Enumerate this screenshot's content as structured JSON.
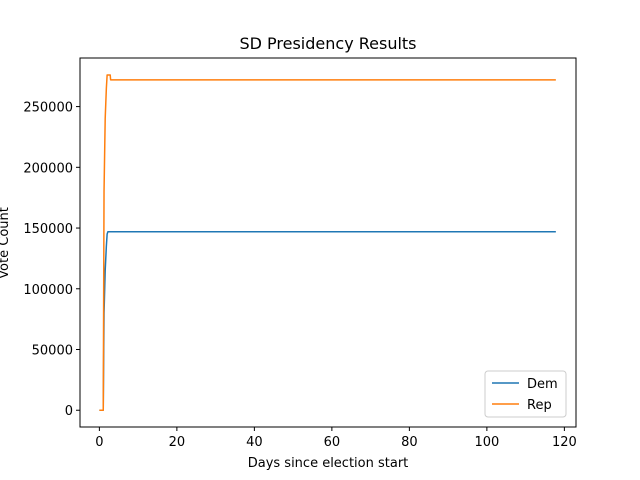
{
  "chart_data": {
    "type": "line",
    "title": "SD Presidency Results",
    "xlabel": "Days since election start",
    "ylabel": "Vote Count",
    "xlim": [
      -5,
      123
    ],
    "ylim": [
      -13800,
      290000
    ],
    "xticks": [
      0,
      20,
      40,
      60,
      80,
      100,
      120
    ],
    "yticks": [
      0,
      50000,
      100000,
      150000,
      200000,
      250000
    ],
    "xtick_labels": [
      "0",
      "20",
      "40",
      "60",
      "80",
      "100",
      "120"
    ],
    "ytick_labels": [
      "0",
      "50000",
      "100000",
      "150000",
      "200000",
      "250000"
    ],
    "grid": false,
    "legend_position": "lower right",
    "series": [
      {
        "name": "Dem",
        "color": "#1f77b4",
        "x": [
          0.0,
          1.0,
          1.2,
          1.5,
          1.8,
          2.0,
          2.2,
          3.0,
          20,
          60,
          100,
          117.8
        ],
        "y": [
          0,
          0,
          80000,
          115000,
          135000,
          145000,
          147000,
          147000,
          147000,
          147000,
          147000,
          147000
        ]
      },
      {
        "name": "Rep",
        "color": "#ff7f0e",
        "x": [
          0.0,
          1.0,
          1.2,
          1.5,
          1.8,
          2.0,
          2.2,
          2.8,
          2.9,
          20,
          60,
          100,
          117.8
        ],
        "y": [
          0,
          0,
          180000,
          240000,
          265000,
          276000,
          276000,
          276000,
          272000,
          272000,
          272000,
          272000,
          272000
        ]
      }
    ]
  }
}
